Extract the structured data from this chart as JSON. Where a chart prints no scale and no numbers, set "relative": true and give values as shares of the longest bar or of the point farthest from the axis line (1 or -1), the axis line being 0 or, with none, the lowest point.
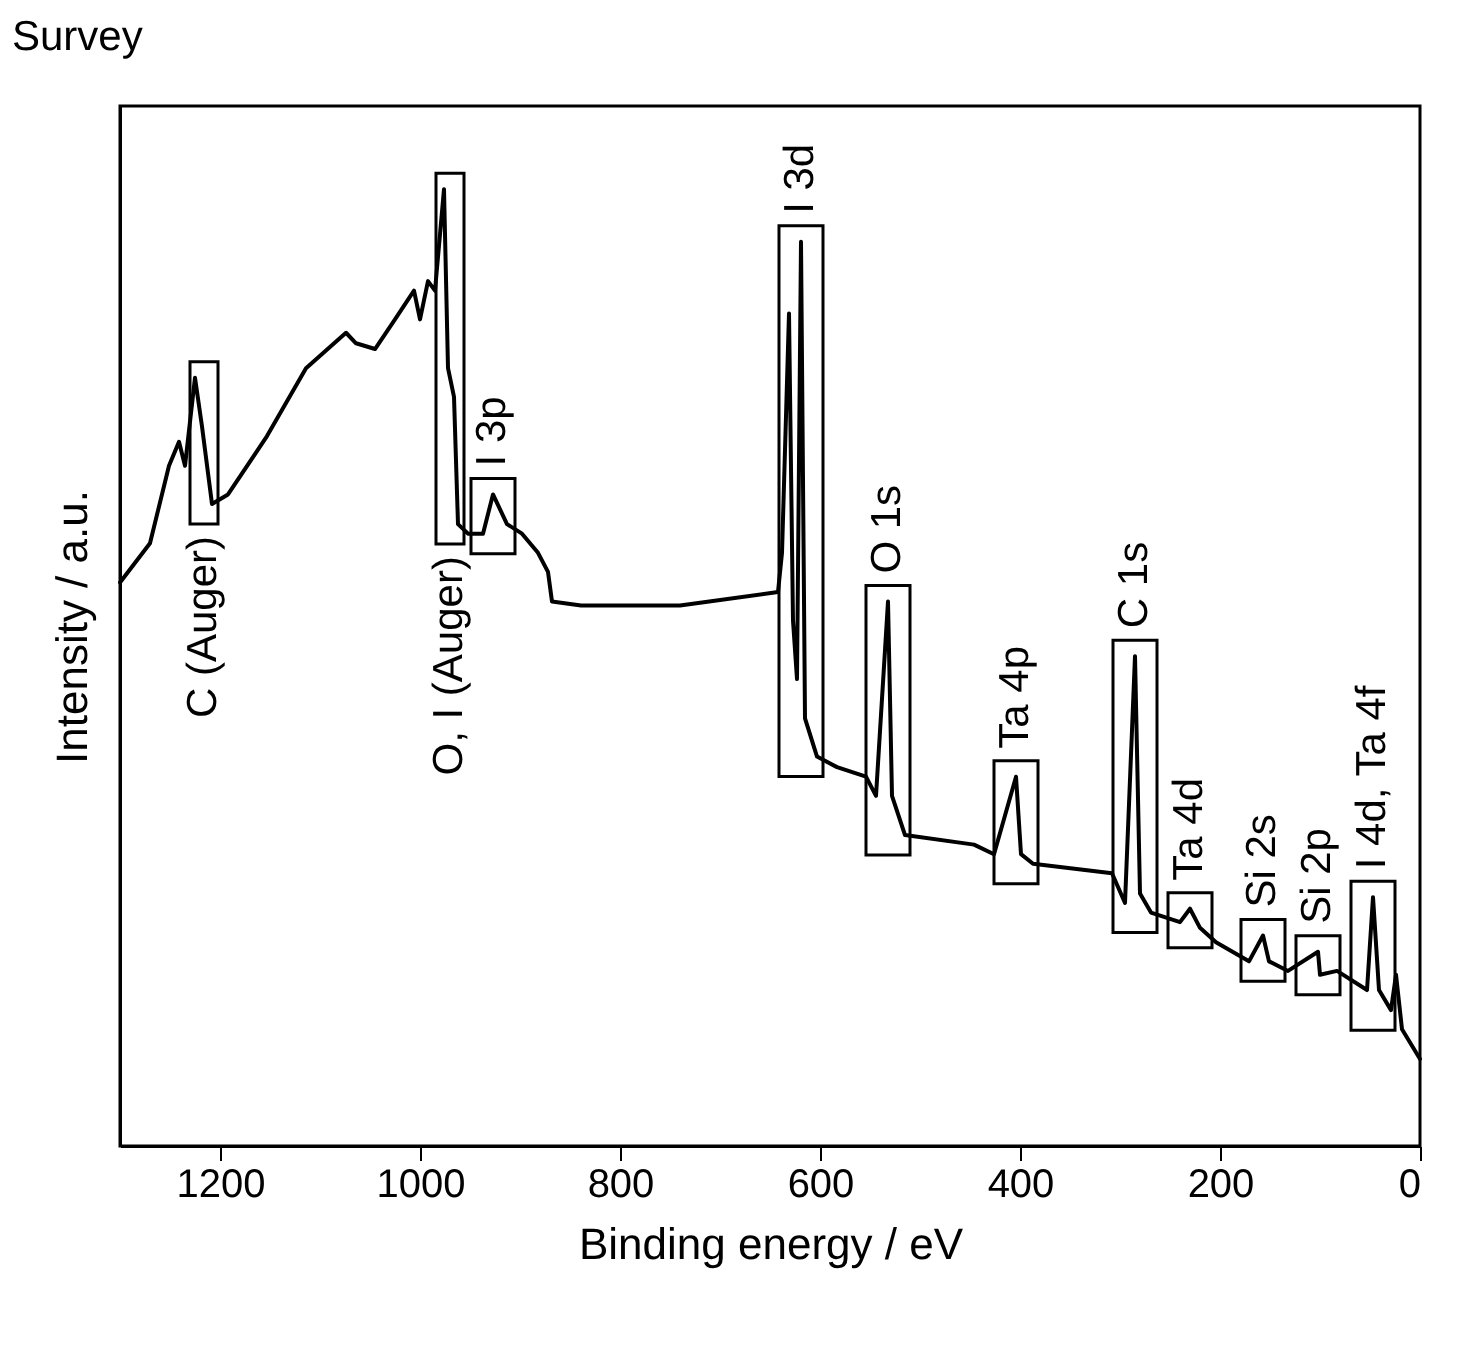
{
  "chart_data": {
    "type": "line",
    "title": "Survey",
    "xlabel": "Binding energy / eV",
    "ylabel": "Intensity / a.u.",
    "relative": true,
    "tick_labels": "x",
    "grid": false,
    "line_style": "solid",
    "xlim": [
      1300,
      0
    ],
    "xticks": [
      1200,
      1000,
      800,
      600,
      400,
      200,
      0
    ],
    "x": [
      1300,
      1270,
      1251,
      1241,
      1235,
      1225,
      1218,
      1208,
      1192,
      1153,
      1114,
      1074,
      1064,
      1045,
      1025,
      1006,
      1000,
      992,
      985,
      976,
      972,
      966,
      962,
      952,
      937,
      927,
      913,
      898,
      882,
      872,
      868,
      839,
      740,
      642,
      638,
      631,
      627,
      623,
      619,
      615,
      603,
      583,
      554,
      544,
      532,
      528,
      515,
      446,
      426,
      404,
      399,
      387,
      308,
      295,
      285,
      280,
      269,
      240,
      230,
      220,
      204,
      171,
      157,
      151,
      132,
      102,
      100,
      83,
      53,
      47,
      41,
      29,
      24,
      18,
      0
    ],
    "series": [
      {
        "color": "#000000",
        "values": [
          0.589,
          0.63,
          0.711,
          0.736,
          0.711,
          0.803,
          0.752,
          0.671,
          0.681,
          0.742,
          0.813,
          0.85,
          0.839,
          0.833,
          0.864,
          0.894,
          0.864,
          0.904,
          0.894,
          1,
          0.813,
          0.783,
          0.65,
          0.64,
          0.64,
          0.681,
          0.65,
          0.64,
          0.62,
          0.6,
          0.569,
          0.565,
          0.565,
          0.579,
          0.62,
          0.87,
          0.549,
          0.488,
          0.945,
          0.447,
          0.407,
          0.396,
          0.386,
          0.366,
          0.569,
          0.366,
          0.325,
          0.315,
          0.305,
          0.386,
          0.305,
          0.295,
          0.285,
          0.254,
          0.512,
          0.264,
          0.244,
          0.234,
          0.248,
          0.228,
          0.213,
          0.193,
          0.22,
          0.193,
          0.183,
          0.203,
          0.179,
          0.183,
          0.163,
          0.26,
          0.163,
          0.142,
          0.179,
          0.122,
          0.091
        ]
      }
    ],
    "legend": false,
    "annotations": [
      {
        "text": "C (Auger)",
        "x": 1208,
        "y": 0.671
      },
      {
        "text": "O, I (Auger)",
        "x": 962,
        "y": 0.65
      },
      {
        "text": "I 3p",
        "x": 927,
        "y": 0.681
      },
      {
        "text": "I 3d",
        "x": 619,
        "y": 0.945
      },
      {
        "text": "O 1s",
        "x": 532,
        "y": 0.569
      },
      {
        "text": "Ta 4p",
        "x": 404,
        "y": 0.386
      },
      {
        "text": "C 1s",
        "x": 285,
        "y": 0.512
      },
      {
        "text": "Ta 4d",
        "x": 230,
        "y": 0.248
      },
      {
        "text": "Si 2s",
        "x": 157,
        "y": 0.22
      },
      {
        "text": "Si 2p",
        "x": 102,
        "y": 0.203
      },
      {
        "text": "I 4d, Ta 4f",
        "x": 47,
        "y": 0.26
      }
    ]
  }
}
